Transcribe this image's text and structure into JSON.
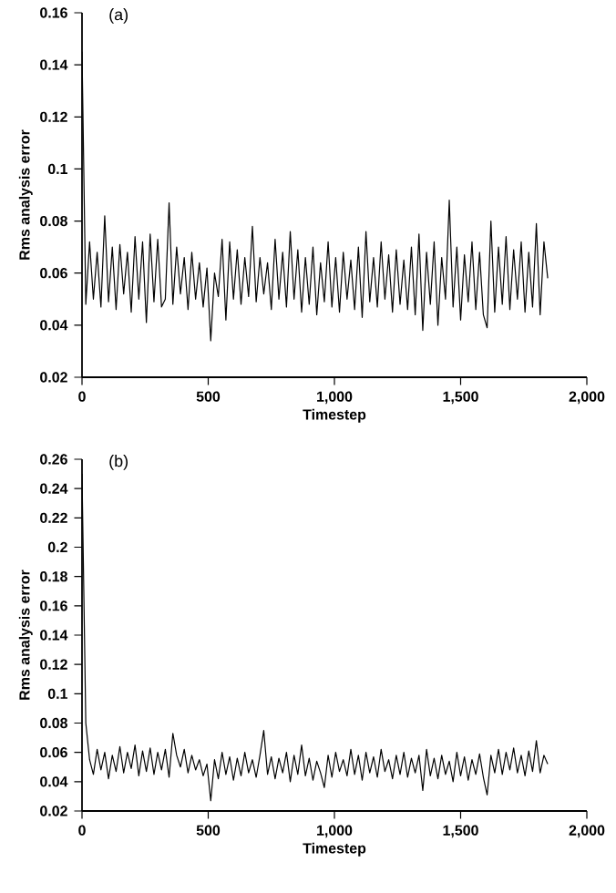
{
  "chart_data": [
    {
      "type": "line",
      "title": "(a)",
      "xlabel": "Timestep",
      "ylabel": "Rms analysis error",
      "color": "#000000",
      "marker": "none",
      "line_style": "solid",
      "grid": false,
      "xlim": [
        0,
        2000
      ],
      "xticks": [
        0,
        500,
        {
          "value": 1000,
          "label": "1,000"
        },
        {
          "value": 1500,
          "label": "1,500"
        },
        {
          "value": 2000,
          "label": "2,000"
        }
      ],
      "ylim": [
        0.02,
        0.16
      ],
      "yticks": [
        0.02,
        0.04,
        0.06,
        0.08,
        0.1,
        0.12,
        0.14,
        0.16
      ],
      "x": [
        0,
        15,
        30,
        45,
        60,
        75,
        90,
        105,
        120,
        135,
        150,
        165,
        180,
        195,
        210,
        225,
        240,
        255,
        270,
        285,
        300,
        315,
        330,
        345,
        360,
        375,
        390,
        405,
        420,
        435,
        450,
        465,
        480,
        495,
        510,
        525,
        540,
        555,
        570,
        585,
        600,
        615,
        630,
        645,
        660,
        675,
        690,
        705,
        720,
        735,
        750,
        765,
        780,
        795,
        810,
        825,
        840,
        855,
        870,
        885,
        900,
        915,
        930,
        945,
        960,
        975,
        990,
        1005,
        1020,
        1035,
        1050,
        1065,
        1080,
        1095,
        1110,
        1125,
        1140,
        1155,
        1170,
        1185,
        1200,
        1215,
        1230,
        1245,
        1260,
        1275,
        1290,
        1305,
        1320,
        1335,
        1350,
        1365,
        1380,
        1395,
        1410,
        1425,
        1440,
        1455,
        1470,
        1485,
        1500,
        1515,
        1530,
        1545,
        1560,
        1575,
        1590,
        1605,
        1620,
        1635,
        1650,
        1665,
        1680,
        1695,
        1710,
        1725,
        1740,
        1755,
        1770,
        1785,
        1800,
        1815,
        1830,
        1845
      ],
      "values": [
        0.145,
        0.048,
        0.072,
        0.05,
        0.068,
        0.047,
        0.082,
        0.049,
        0.07,
        0.046,
        0.071,
        0.052,
        0.068,
        0.045,
        0.074,
        0.05,
        0.072,
        0.041,
        0.075,
        0.049,
        0.073,
        0.047,
        0.05,
        0.087,
        0.048,
        0.07,
        0.052,
        0.066,
        0.046,
        0.068,
        0.05,
        0.064,
        0.047,
        0.062,
        0.034,
        0.06,
        0.051,
        0.073,
        0.042,
        0.072,
        0.05,
        0.069,
        0.048,
        0.066,
        0.051,
        0.078,
        0.049,
        0.066,
        0.052,
        0.064,
        0.046,
        0.073,
        0.05,
        0.068,
        0.047,
        0.076,
        0.05,
        0.069,
        0.045,
        0.066,
        0.048,
        0.07,
        0.044,
        0.064,
        0.049,
        0.072,
        0.047,
        0.066,
        0.045,
        0.068,
        0.05,
        0.065,
        0.046,
        0.07,
        0.043,
        0.076,
        0.049,
        0.066,
        0.047,
        0.072,
        0.05,
        0.067,
        0.045,
        0.069,
        0.048,
        0.065,
        0.046,
        0.07,
        0.044,
        0.075,
        0.038,
        0.068,
        0.048,
        0.072,
        0.04,
        0.066,
        0.05,
        0.088,
        0.047,
        0.07,
        0.042,
        0.067,
        0.049,
        0.072,
        0.046,
        0.068,
        0.044,
        0.039,
        0.08,
        0.045,
        0.07,
        0.048,
        0.074,
        0.046,
        0.069,
        0.05,
        0.072,
        0.045,
        0.068,
        0.047,
        0.079,
        0.044,
        0.072,
        0.058
      ]
    },
    {
      "type": "line",
      "title": "(b)",
      "xlabel": "Timestep",
      "ylabel": "Rms analysis error",
      "color": "#000000",
      "marker": "none",
      "line_style": "solid",
      "grid": false,
      "xlim": [
        0,
        2000
      ],
      "xticks": [
        0,
        500,
        {
          "value": 1000,
          "label": "1,000"
        },
        {
          "value": 1500,
          "label": "1,500"
        },
        {
          "value": 2000,
          "label": "2,000"
        }
      ],
      "ylim": [
        0.02,
        0.26
      ],
      "yticks": [
        0.02,
        0.04,
        0.06,
        0.08,
        0.1,
        0.12,
        0.14,
        0.16,
        0.18,
        0.2,
        0.22,
        0.24,
        0.26
      ],
      "x": [
        0,
        15,
        30,
        45,
        60,
        75,
        90,
        105,
        120,
        135,
        150,
        165,
        180,
        195,
        210,
        225,
        240,
        255,
        270,
        285,
        300,
        315,
        330,
        345,
        360,
        375,
        390,
        405,
        420,
        435,
        450,
        465,
        480,
        495,
        510,
        525,
        540,
        555,
        570,
        585,
        600,
        615,
        630,
        645,
        660,
        675,
        690,
        705,
        720,
        735,
        750,
        765,
        780,
        795,
        810,
        825,
        840,
        855,
        870,
        885,
        900,
        915,
        930,
        945,
        960,
        975,
        990,
        1005,
        1020,
        1035,
        1050,
        1065,
        1080,
        1095,
        1110,
        1125,
        1140,
        1155,
        1170,
        1185,
        1200,
        1215,
        1230,
        1245,
        1260,
        1275,
        1290,
        1305,
        1320,
        1335,
        1350,
        1365,
        1380,
        1395,
        1410,
        1425,
        1440,
        1455,
        1470,
        1485,
        1500,
        1515,
        1530,
        1545,
        1560,
        1575,
        1590,
        1605,
        1620,
        1635,
        1650,
        1665,
        1680,
        1695,
        1710,
        1725,
        1740,
        1755,
        1770,
        1785,
        1800,
        1815,
        1830,
        1845
      ],
      "values": [
        0.25,
        0.08,
        0.055,
        0.045,
        0.062,
        0.048,
        0.06,
        0.042,
        0.058,
        0.047,
        0.064,
        0.046,
        0.06,
        0.049,
        0.065,
        0.044,
        0.061,
        0.047,
        0.063,
        0.045,
        0.06,
        0.048,
        0.062,
        0.043,
        0.073,
        0.058,
        0.05,
        0.062,
        0.046,
        0.058,
        0.048,
        0.055,
        0.044,
        0.052,
        0.027,
        0.055,
        0.042,
        0.06,
        0.045,
        0.057,
        0.041,
        0.056,
        0.044,
        0.06,
        0.046,
        0.055,
        0.043,
        0.058,
        0.075,
        0.045,
        0.057,
        0.042,
        0.056,
        0.046,
        0.06,
        0.04,
        0.058,
        0.045,
        0.065,
        0.044,
        0.056,
        0.041,
        0.054,
        0.046,
        0.036,
        0.058,
        0.043,
        0.06,
        0.047,
        0.055,
        0.044,
        0.062,
        0.045,
        0.058,
        0.041,
        0.06,
        0.046,
        0.057,
        0.043,
        0.062,
        0.047,
        0.055,
        0.042,
        0.058,
        0.045,
        0.06,
        0.043,
        0.056,
        0.046,
        0.058,
        0.034,
        0.062,
        0.044,
        0.056,
        0.042,
        0.058,
        0.045,
        0.054,
        0.04,
        0.06,
        0.044,
        0.057,
        0.041,
        0.055,
        0.045,
        0.059,
        0.043,
        0.031,
        0.058,
        0.046,
        0.062,
        0.045,
        0.06,
        0.048,
        0.063,
        0.046,
        0.058,
        0.044,
        0.061,
        0.047,
        0.068,
        0.046,
        0.058,
        0.052
      ]
    }
  ]
}
